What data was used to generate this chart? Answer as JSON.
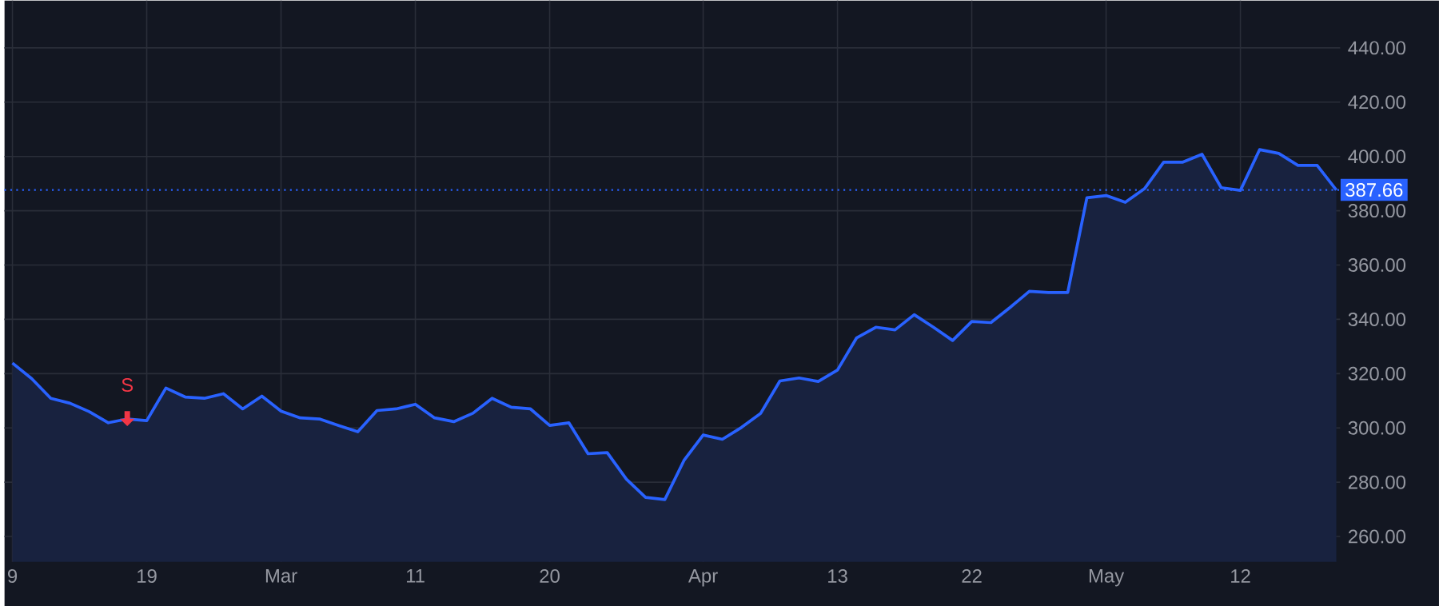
{
  "chart_data": {
    "type": "area",
    "categories": [
      "9",
      null,
      null,
      null,
      null,
      null,
      null,
      "19",
      null,
      null,
      null,
      null,
      null,
      null,
      "Mar",
      null,
      null,
      null,
      null,
      null,
      null,
      "11",
      null,
      null,
      null,
      null,
      null,
      null,
      "20",
      null,
      null,
      null,
      null,
      null,
      null,
      null,
      "Apr",
      null,
      null,
      null,
      null,
      null,
      null,
      "13",
      null,
      null,
      null,
      null,
      null,
      null,
      "22",
      null,
      null,
      null,
      null,
      null,
      null,
      "May",
      null,
      null,
      null,
      null,
      null,
      null,
      "12",
      null,
      null,
      null,
      null,
      null
    ],
    "series": [
      {
        "color": "#2962ff",
        "values": [
          323.9,
          318.2,
          310.9,
          309.1,
          306.0,
          301.9,
          303.3,
          302.7,
          314.7,
          311.4,
          310.9,
          312.6,
          307.0,
          311.7,
          306.2,
          303.7,
          303.3,
          300.9,
          298.6,
          306.4,
          307.0,
          308.7,
          303.7,
          302.3,
          305.4,
          310.9,
          307.6,
          307.0,
          300.9,
          301.9,
          290.5,
          290.9,
          281.1,
          274.4,
          273.6,
          288.0,
          297.4,
          295.8,
          300.2,
          305.4,
          317.3,
          318.4,
          317.1,
          321.3,
          333.2,
          337.1,
          336.1,
          341.7,
          337.1,
          332.2,
          339.2,
          338.8,
          344.4,
          350.3,
          349.9,
          349.9,
          384.8,
          385.6,
          383.1,
          388.1,
          397.9,
          397.9,
          400.8,
          388.5,
          387.5,
          402.5,
          401.1,
          396.7,
          396.7,
          387.66
        ]
      }
    ],
    "ylim": [
      250.7,
      457.4
    ],
    "yticks": [
      {
        "value": 260,
        "label": "260.00"
      },
      {
        "value": 280,
        "label": "280.00"
      },
      {
        "value": 300,
        "label": "300.00"
      },
      {
        "value": 320,
        "label": "320.00"
      },
      {
        "value": 340,
        "label": "340.00"
      },
      {
        "value": 360,
        "label": "360.00"
      },
      {
        "value": 380,
        "label": "380.00"
      },
      {
        "value": 400,
        "label": "400.00"
      },
      {
        "value": 420,
        "label": "420.00"
      },
      {
        "value": 440,
        "label": "440.00"
      }
    ],
    "grid": true,
    "ref_lines": [
      {
        "axis": "y",
        "value": 387.66,
        "label": "387.66",
        "color": "#2962ff",
        "line_style": "dotted"
      }
    ],
    "annotations": [
      "S"
    ]
  }
}
